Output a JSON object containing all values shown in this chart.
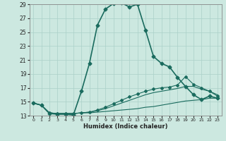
{
  "title": "",
  "xlabel": "Humidex (Indice chaleur)",
  "background_color": "#cce8e0",
  "grid_color": "#aad0c8",
  "line_color": "#1a6b5e",
  "xlim": [
    -0.5,
    23.5
  ],
  "ylim": [
    13,
    29
  ],
  "xticks": [
    0,
    1,
    2,
    3,
    4,
    5,
    6,
    7,
    8,
    9,
    10,
    11,
    12,
    13,
    14,
    15,
    16,
    17,
    18,
    19,
    20,
    21,
    22,
    23
  ],
  "yticks": [
    13,
    15,
    17,
    19,
    21,
    23,
    25,
    27,
    29
  ],
  "series": [
    {
      "x": [
        0,
        1,
        2,
        3,
        4,
        5,
        6,
        7,
        8,
        9,
        10,
        11,
        12,
        13,
        14,
        15,
        16,
        17,
        18,
        19,
        20,
        21,
        22,
        23
      ],
      "y": [
        14.8,
        14.5,
        13.3,
        13.2,
        13.2,
        13.1,
        16.5,
        20.5,
        26.0,
        28.3,
        29.1,
        29.2,
        28.6,
        29.0,
        25.3,
        21.5,
        20.5,
        20.0,
        18.5,
        17.2,
        16.0,
        15.3,
        15.8,
        15.5
      ],
      "marker": "D",
      "markersize": 2.5,
      "linewidth": 1.2
    },
    {
      "x": [
        0,
        1,
        2,
        3,
        4,
        5,
        6,
        7,
        8,
        9,
        10,
        11,
        12,
        13,
        14,
        15,
        16,
        17,
        18,
        19,
        20,
        21,
        22,
        23
      ],
      "y": [
        14.8,
        14.5,
        13.4,
        13.3,
        13.3,
        13.3,
        13.4,
        13.4,
        13.5,
        13.6,
        13.7,
        13.8,
        13.9,
        14.0,
        14.2,
        14.3,
        14.5,
        14.7,
        14.9,
        15.1,
        15.2,
        15.3,
        15.5,
        15.5
      ],
      "marker": null,
      "linewidth": 0.8
    },
    {
      "x": [
        0,
        1,
        2,
        3,
        4,
        5,
        6,
        7,
        8,
        9,
        10,
        11,
        12,
        13,
        14,
        15,
        16,
        17,
        18,
        19,
        20,
        21,
        22,
        23
      ],
      "y": [
        14.8,
        14.5,
        13.4,
        13.3,
        13.3,
        13.3,
        13.4,
        13.5,
        13.7,
        14.0,
        14.4,
        14.8,
        15.2,
        15.6,
        16.0,
        16.3,
        16.5,
        16.7,
        16.9,
        17.2,
        17.2,
        16.8,
        16.5,
        16.0
      ],
      "marker": null,
      "linewidth": 0.8
    },
    {
      "x": [
        0,
        1,
        2,
        3,
        4,
        5,
        6,
        7,
        8,
        9,
        10,
        11,
        12,
        13,
        14,
        15,
        16,
        17,
        18,
        19,
        20,
        21,
        22,
        23
      ],
      "y": [
        14.8,
        14.5,
        13.4,
        13.3,
        13.3,
        13.3,
        13.4,
        13.5,
        13.8,
        14.2,
        14.7,
        15.2,
        15.7,
        16.1,
        16.5,
        16.8,
        17.0,
        17.1,
        17.4,
        18.6,
        17.5,
        17.0,
        16.5,
        15.8
      ],
      "marker": "D",
      "markersize": 2.0,
      "linewidth": 0.8
    }
  ]
}
